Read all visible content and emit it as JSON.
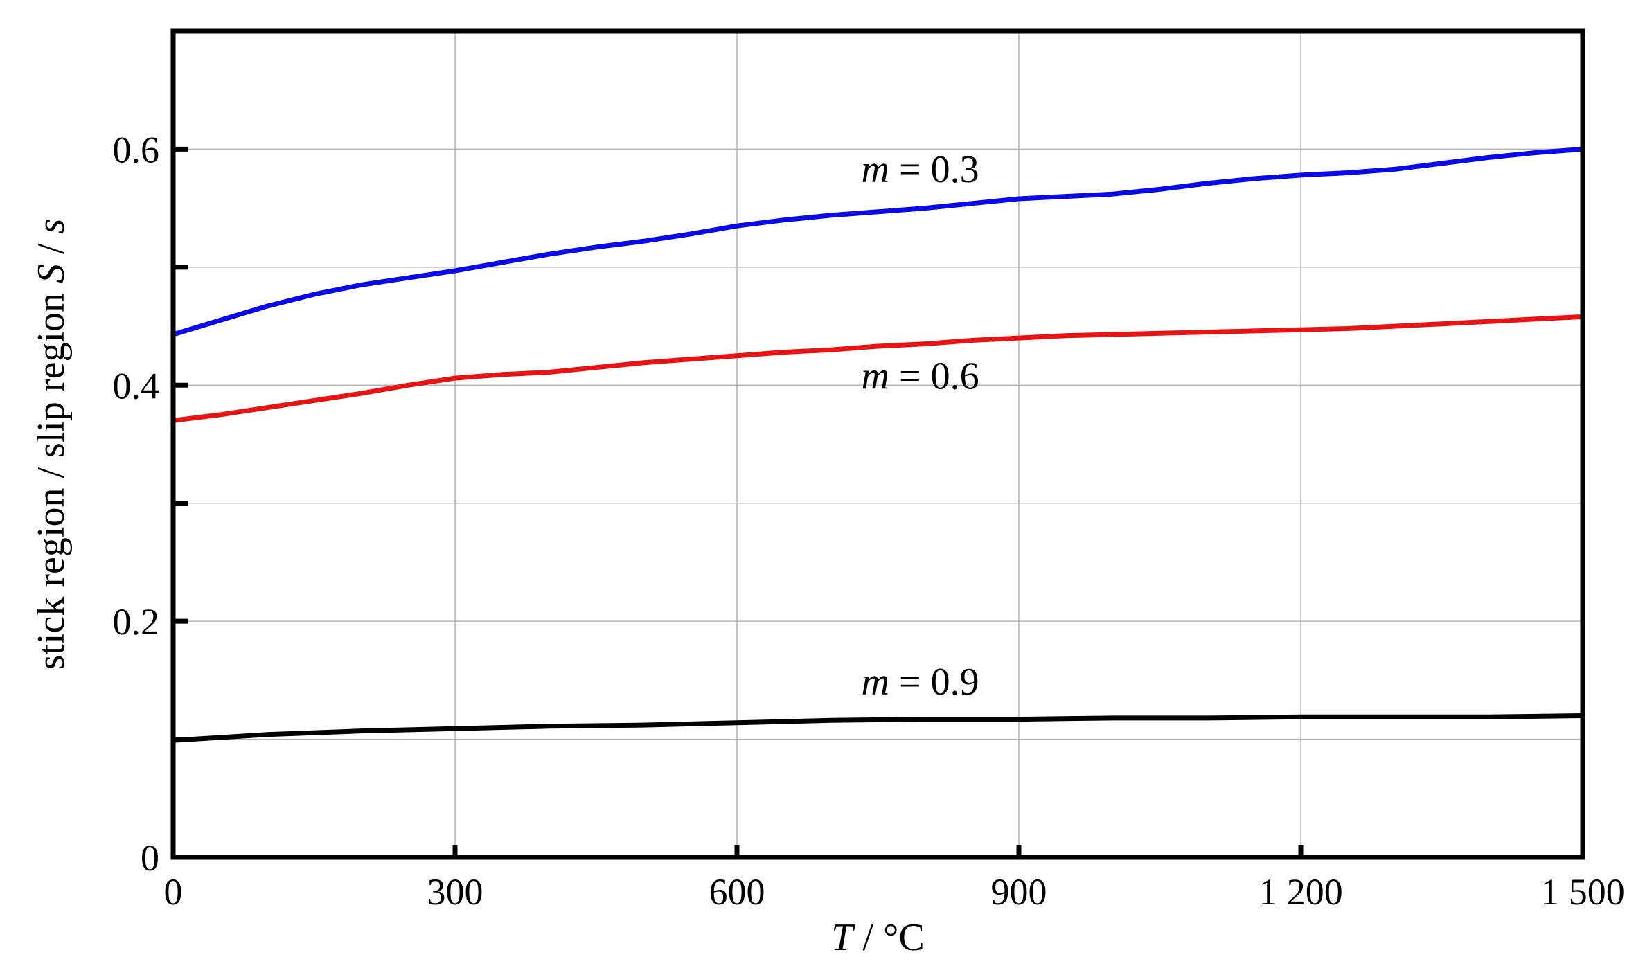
{
  "chart_data": {
    "type": "line",
    "xlabel": {
      "var": "T",
      "sep": " / ",
      "unit": "°C"
    },
    "ylabel": {
      "text": "stick region / slip region ",
      "var": "S",
      "sep": " / ",
      "unit": "s"
    },
    "xlim": [
      0,
      1500
    ],
    "ylim": [
      0,
      0.7
    ],
    "x_ticks": [
      0,
      300,
      600,
      900,
      1200,
      1500
    ],
    "x_tick_labels": [
      "0",
      "300",
      "600",
      "900",
      "1 200",
      "1 500"
    ],
    "y_ticks": [
      0,
      0.1,
      0.2,
      0.3,
      0.4,
      0.5,
      0.6
    ],
    "y_tick_labels": [
      "0",
      "",
      "0.2",
      "",
      "0.4",
      "",
      "0.6"
    ],
    "grid": true,
    "legend": "none",
    "series": [
      {
        "label": {
          "var": "m",
          "eq": " = ",
          "num": "0.3"
        },
        "color": "#0a0ae6",
        "x": [
          0,
          50,
          100,
          150,
          200,
          250,
          300,
          350,
          400,
          450,
          500,
          550,
          600,
          650,
          700,
          750,
          800,
          850,
          900,
          950,
          1000,
          1050,
          1100,
          1150,
          1200,
          1250,
          1300,
          1350,
          1400,
          1450,
          1500
        ],
        "y": [
          0.443,
          0.455,
          0.467,
          0.477,
          0.485,
          0.491,
          0.497,
          0.504,
          0.511,
          0.517,
          0.522,
          0.528,
          0.535,
          0.54,
          0.544,
          0.547,
          0.55,
          0.554,
          0.558,
          0.56,
          0.562,
          0.566,
          0.571,
          0.575,
          0.578,
          0.58,
          0.583,
          0.588,
          0.593,
          0.597,
          0.6
        ]
      },
      {
        "label": {
          "var": "m",
          "eq": " = ",
          "num": "0.6"
        },
        "color": "#e61414",
        "x": [
          0,
          50,
          100,
          150,
          200,
          250,
          300,
          350,
          400,
          450,
          500,
          550,
          600,
          650,
          700,
          750,
          800,
          850,
          900,
          950,
          1000,
          1050,
          1100,
          1150,
          1200,
          1250,
          1300,
          1350,
          1400,
          1450,
          1500
        ],
        "y": [
          0.37,
          0.375,
          0.381,
          0.387,
          0.393,
          0.4,
          0.406,
          0.409,
          0.411,
          0.415,
          0.419,
          0.422,
          0.425,
          0.428,
          0.43,
          0.433,
          0.435,
          0.438,
          0.44,
          0.442,
          0.443,
          0.444,
          0.445,
          0.446,
          0.447,
          0.448,
          0.45,
          0.452,
          0.454,
          0.456,
          0.458
        ]
      },
      {
        "label": {
          "var": "m",
          "eq": " = ",
          "num": "0.9"
        },
        "color": "#000000",
        "x": [
          0,
          100,
          200,
          300,
          400,
          500,
          600,
          700,
          800,
          900,
          1000,
          1100,
          1200,
          1300,
          1400,
          1500
        ],
        "y": [
          0.099,
          0.104,
          0.107,
          0.109,
          0.111,
          0.112,
          0.114,
          0.116,
          0.117,
          0.117,
          0.118,
          0.118,
          0.119,
          0.119,
          0.119,
          0.12
        ]
      }
    ],
    "annotations": [
      {
        "series": 0,
        "x": 795,
        "y": 0.572
      },
      {
        "series": 1,
        "x": 795,
        "y": 0.397
      },
      {
        "series": 2,
        "x": 795,
        "y": 0.138
      }
    ]
  }
}
